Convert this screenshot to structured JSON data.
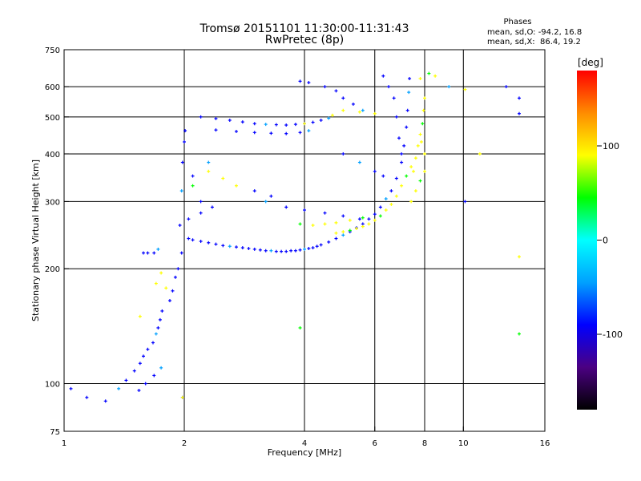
{
  "chart_data": {
    "type": "scatter",
    "title": "Tromsø 20151101 11:30:00-11:31:43",
    "subtitle": "RwPretec (8p)",
    "xlabel": "Frequency [MHz]",
    "ylabel": "Stationary phase Virtual Height [km]",
    "x_scale": "log",
    "y_scale": "log",
    "xlim": [
      1,
      16
    ],
    "ylim": [
      75,
      750
    ],
    "x_ticks": [
      "1",
      "2",
      "4",
      "6",
      "8",
      "10",
      "16"
    ],
    "x_tick_values": [
      1,
      2,
      4,
      6,
      8,
      10,
      16
    ],
    "y_ticks": [
      "75",
      "100",
      "200",
      "300",
      "400",
      "500",
      "600",
      "750"
    ],
    "y_tick_values": [
      75,
      100,
      200,
      300,
      400,
      500,
      600,
      750
    ],
    "grid": true,
    "stats": {
      "title": "Phases",
      "line_o": "mean, sd,O: -94.2, 16.8",
      "line_x": "mean, sd,X:  86.4, 19.2"
    },
    "colorbar": {
      "unit": "[deg]",
      "range": [
        -180,
        180
      ],
      "ticks": [
        "100",
        "0",
        "-100"
      ],
      "tick_values": [
        100,
        0,
        -100
      ],
      "colors": [
        "#000000",
        "#4b0082",
        "#0000ff",
        "#00a0ff",
        "#00ffff",
        "#00ff00",
        "#ffff00",
        "#ff8c00",
        "#ff0000"
      ]
    },
    "series": [
      {
        "points": [
          [
            1.04,
            97
          ],
          [
            1.14,
            92
          ],
          [
            1.27,
            90
          ],
          [
            1.37,
            97
          ],
          [
            1.43,
            102
          ],
          [
            1.5,
            108
          ],
          [
            1.55,
            113
          ],
          [
            1.58,
            118
          ],
          [
            1.62,
            123
          ],
          [
            1.67,
            128
          ],
          [
            1.7,
            135
          ],
          [
            1.72,
            140
          ],
          [
            1.74,
            147
          ],
          [
            1.76,
            155
          ],
          [
            1.54,
            96
          ],
          [
            1.6,
            100
          ],
          [
            1.68,
            105
          ],
          [
            1.75,
            110
          ],
          [
            1.84,
            165
          ],
          [
            1.87,
            175
          ],
          [
            1.9,
            190
          ],
          [
            1.93,
            200
          ],
          [
            1.97,
            220
          ],
          [
            1.95,
            260
          ],
          [
            1.97,
            320
          ],
          [
            1.98,
            380
          ],
          [
            2.0,
            430
          ],
          [
            2.01,
            460
          ],
          [
            1.58,
            220
          ],
          [
            1.62,
            220
          ],
          [
            1.68,
            220
          ],
          [
            1.72,
            225
          ],
          [
            2.05,
            240
          ],
          [
            2.1,
            238
          ],
          [
            2.2,
            236
          ],
          [
            2.3,
            234
          ],
          [
            2.4,
            232
          ],
          [
            2.5,
            230
          ],
          [
            2.6,
            229
          ],
          [
            2.7,
            228
          ],
          [
            2.8,
            227
          ],
          [
            2.9,
            226
          ],
          [
            3.0,
            225
          ],
          [
            3.1,
            224
          ],
          [
            3.2,
            223
          ],
          [
            3.3,
            223
          ],
          [
            3.4,
            222
          ],
          [
            3.5,
            222
          ],
          [
            3.6,
            222
          ],
          [
            3.7,
            223
          ],
          [
            3.8,
            223
          ],
          [
            3.9,
            224
          ],
          [
            4.0,
            225
          ],
          [
            4.1,
            226
          ],
          [
            4.2,
            227
          ],
          [
            4.3,
            229
          ],
          [
            4.4,
            231
          ],
          [
            4.6,
            235
          ],
          [
            4.8,
            240
          ],
          [
            5.0,
            245
          ],
          [
            5.2,
            250
          ],
          [
            5.4,
            256
          ],
          [
            5.6,
            262
          ],
          [
            5.8,
            270
          ],
          [
            6.0,
            278
          ],
          [
            6.2,
            290
          ],
          [
            6.4,
            305
          ],
          [
            6.6,
            320
          ],
          [
            6.8,
            345
          ],
          [
            7.0,
            380
          ],
          [
            7.1,
            420
          ],
          [
            7.2,
            470
          ],
          [
            7.25,
            520
          ],
          [
            7.3,
            580
          ],
          [
            7.33,
            630
          ],
          [
            2.2,
            500
          ],
          [
            2.4,
            495
          ],
          [
            2.6,
            490
          ],
          [
            2.8,
            485
          ],
          [
            3.0,
            480
          ],
          [
            3.2,
            478
          ],
          [
            3.4,
            477
          ],
          [
            3.6,
            476
          ],
          [
            3.8,
            478
          ],
          [
            4.0,
            480
          ],
          [
            4.2,
            484
          ],
          [
            4.4,
            490
          ],
          [
            4.6,
            496
          ],
          [
            2.4,
            462
          ],
          [
            2.7,
            458
          ],
          [
            3.0,
            455
          ],
          [
            3.3,
            453
          ],
          [
            3.6,
            452
          ],
          [
            3.9,
            455
          ],
          [
            4.1,
            460
          ],
          [
            3.9,
            620
          ],
          [
            4.1,
            615
          ],
          [
            4.5,
            600
          ],
          [
            4.8,
            585
          ],
          [
            5.0,
            560
          ],
          [
            5.3,
            540
          ],
          [
            5.6,
            520
          ],
          [
            6.3,
            640
          ],
          [
            6.5,
            600
          ],
          [
            6.7,
            560
          ],
          [
            6.8,
            500
          ],
          [
            6.9,
            440
          ],
          [
            7.0,
            400
          ],
          [
            3.2,
            300
          ],
          [
            3.6,
            290
          ],
          [
            4.0,
            285
          ],
          [
            4.5,
            280
          ],
          [
            5.0,
            275
          ],
          [
            5.5,
            270
          ],
          [
            5.0,
            400
          ],
          [
            5.5,
            380
          ],
          [
            6.0,
            360
          ],
          [
            6.3,
            350
          ],
          [
            3.0,
            320
          ],
          [
            3.3,
            310
          ],
          [
            2.1,
            350
          ],
          [
            2.2,
            300
          ],
          [
            2.3,
            380
          ],
          [
            2.35,
            290
          ],
          [
            2.2,
            280
          ],
          [
            2.05,
            270
          ],
          [
            12.8,
            600
          ],
          [
            13.8,
            560
          ],
          [
            13.8,
            510
          ],
          [
            9.2,
            600
          ],
          [
            10.1,
            300
          ],
          [
            1.98,
            92
          ]
        ]
      },
      {
        "points": [
          [
            4.8,
            248
          ],
          [
            5.0,
            250
          ],
          [
            5.2,
            252
          ],
          [
            5.4,
            255
          ],
          [
            5.6,
            258
          ],
          [
            5.8,
            262
          ],
          [
            6.0,
            268
          ],
          [
            6.2,
            275
          ],
          [
            6.4,
            285
          ],
          [
            6.6,
            295
          ],
          [
            6.8,
            310
          ],
          [
            7.0,
            330
          ],
          [
            7.2,
            350
          ],
          [
            7.4,
            370
          ],
          [
            7.6,
            390
          ],
          [
            7.7,
            420
          ],
          [
            7.8,
            450
          ],
          [
            7.9,
            480
          ],
          [
            7.95,
            520
          ],
          [
            8.0,
            560
          ],
          [
            7.4,
            300
          ],
          [
            7.6,
            320
          ],
          [
            7.8,
            340
          ],
          [
            8.0,
            360
          ],
          [
            8.0,
            400
          ],
          [
            7.85,
            430
          ],
          [
            7.5,
            360
          ],
          [
            3.9,
            262
          ],
          [
            4.2,
            260
          ],
          [
            4.5,
            262
          ],
          [
            4.8,
            264
          ],
          [
            5.2,
            268
          ],
          [
            5.6,
            272
          ],
          [
            5.0,
            520
          ],
          [
            5.5,
            515
          ],
          [
            6.0,
            510
          ],
          [
            4.7,
            505
          ],
          [
            2.1,
            330
          ],
          [
            2.3,
            360
          ],
          [
            2.5,
            345
          ],
          [
            2.7,
            330
          ],
          [
            8.5,
            640
          ],
          [
            8.2,
            650
          ],
          [
            7.8,
            630
          ],
          [
            10.1,
            590
          ],
          [
            11.0,
            400
          ],
          [
            13.8,
            215
          ],
          [
            13.8,
            135
          ],
          [
            1.7,
            183
          ],
          [
            1.75,
            195
          ],
          [
            1.8,
            178
          ],
          [
            1.55,
            150
          ],
          [
            3.9,
            140
          ],
          [
            4.0,
            480
          ],
          [
            1.98,
            92
          ]
        ]
      }
    ]
  }
}
